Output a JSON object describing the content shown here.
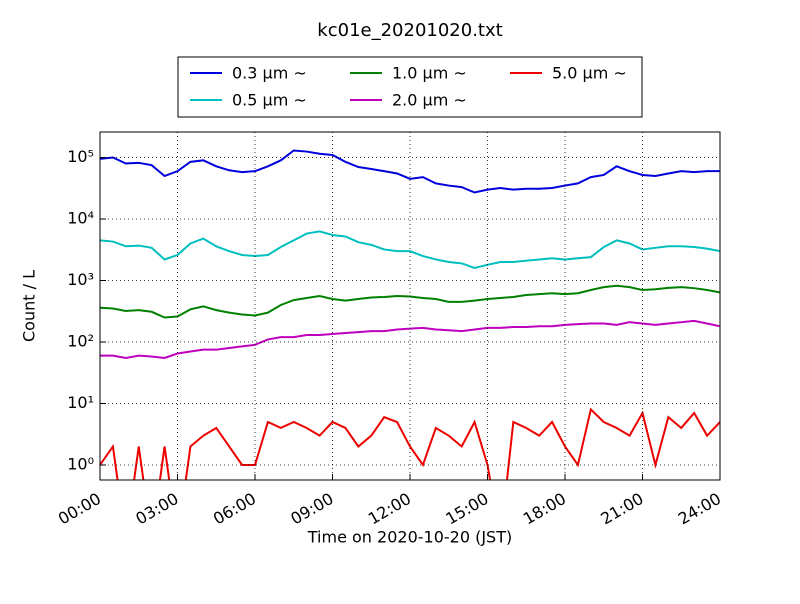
{
  "chart_data": {
    "type": "line",
    "title": "kc01e_20201020.txt",
    "xlabel": "Time on 2020-10-20 (JST)",
    "ylabel": "Count / L",
    "log_y": true,
    "grid": true,
    "legend": "top-center",
    "x": [
      "00:00",
      "00:30",
      "01:00",
      "01:30",
      "02:00",
      "02:30",
      "03:00",
      "03:30",
      "04:00",
      "04:30",
      "05:00",
      "05:30",
      "06:00",
      "06:30",
      "07:00",
      "07:30",
      "08:00",
      "08:30",
      "09:00",
      "09:30",
      "10:00",
      "10:30",
      "11:00",
      "11:30",
      "12:00",
      "12:30",
      "13:00",
      "13:30",
      "14:00",
      "14:30",
      "15:00",
      "15:30",
      "16:00",
      "16:30",
      "17:00",
      "17:30",
      "18:00",
      "18:30",
      "19:00",
      "19:30",
      "20:00",
      "20:30",
      "21:00",
      "21:30",
      "22:00",
      "22:30",
      "23:00",
      "23:30",
      "24:00"
    ],
    "xlim": [
      "00:00",
      "24:00"
    ],
    "xticks": [
      "00:00",
      "03:00",
      "06:00",
      "09:00",
      "12:00",
      "15:00",
      "18:00",
      "21:00",
      "24:00"
    ],
    "ylim": [
      0.57,
      260000
    ],
    "yticks": [
      {
        "value": 1,
        "label": "10⁰"
      },
      {
        "value": 10,
        "label": "10¹"
      },
      {
        "value": 100,
        "label": "10²"
      },
      {
        "value": 1000,
        "label": "10³"
      },
      {
        "value": 10000,
        "label": "10⁴"
      },
      {
        "value": 100000,
        "label": "10⁵"
      }
    ],
    "series": [
      {
        "name": "0.3 μm ~",
        "color": "#0000dd",
        "values": [
          95000,
          100000,
          80000,
          82000,
          75000,
          50000,
          60000,
          85000,
          90000,
          72000,
          62000,
          58000,
          60000,
          72000,
          90000,
          130000,
          125000,
          115000,
          110000,
          85000,
          70000,
          65000,
          60000,
          55000,
          45000,
          48000,
          38000,
          35000,
          33000,
          27000,
          30000,
          32000,
          30000,
          31000,
          31000,
          32000,
          35000,
          38000,
          48000,
          52000,
          72000,
          60000,
          52000,
          50000,
          55000,
          60000,
          58000,
          60000,
          60000
        ]
      },
      {
        "name": "0.5 μm ~",
        "color": "#00bfbf",
        "values": [
          4500,
          4300,
          3600,
          3700,
          3400,
          2200,
          2600,
          4000,
          4800,
          3600,
          3000,
          2600,
          2500,
          2600,
          3500,
          4500,
          5800,
          6300,
          5500,
          5200,
          4200,
          3800,
          3200,
          3000,
          3000,
          2500,
          2200,
          2000,
          1900,
          1600,
          1800,
          2000,
          2000,
          2100,
          2200,
          2300,
          2200,
          2300,
          2400,
          3500,
          4500,
          4000,
          3200,
          3400,
          3600,
          3600,
          3500,
          3300,
          3000
        ]
      },
      {
        "name": "1.0 μm ~",
        "color": "#008000",
        "values": [
          360,
          350,
          320,
          330,
          310,
          250,
          260,
          340,
          380,
          330,
          300,
          280,
          270,
          300,
          400,
          480,
          520,
          560,
          500,
          470,
          500,
          530,
          540,
          560,
          550,
          520,
          500,
          450,
          450,
          470,
          500,
          520,
          540,
          580,
          600,
          620,
          600,
          620,
          700,
          780,
          820,
          780,
          700,
          720,
          760,
          780,
          750,
          700,
          640
        ]
      },
      {
        "name": "2.0 μm ~",
        "color": "#bf00bf",
        "values": [
          60,
          60,
          55,
          60,
          58,
          55,
          65,
          70,
          75,
          75,
          80,
          85,
          90,
          110,
          120,
          120,
          130,
          130,
          135,
          140,
          145,
          150,
          150,
          160,
          165,
          170,
          160,
          155,
          150,
          160,
          170,
          170,
          175,
          175,
          180,
          180,
          190,
          195,
          200,
          200,
          190,
          210,
          200,
          190,
          200,
          210,
          220,
          200,
          180
        ]
      },
      {
        "name": "5.0 μm ~",
        "color": "#ee0000",
        "values": [
          1,
          2,
          0,
          2,
          0,
          2,
          0,
          2,
          3,
          4,
          2,
          1,
          1,
          5,
          4,
          5,
          4,
          3,
          5,
          4,
          2,
          3,
          6,
          5,
          2,
          1,
          4,
          3,
          2,
          5,
          1,
          0,
          5,
          4,
          3,
          5,
          2,
          1,
          8,
          5,
          4,
          3,
          7,
          1,
          6,
          4,
          7,
          3,
          5
        ]
      }
    ]
  }
}
